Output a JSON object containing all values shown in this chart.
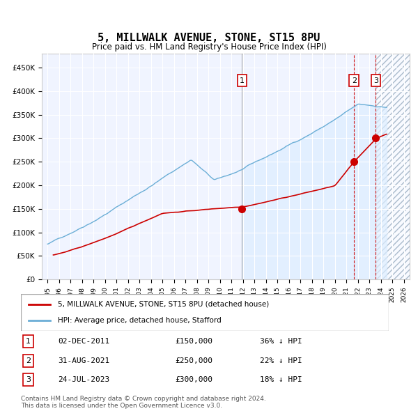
{
  "title": "5, MILLWALK AVENUE, STONE, ST15 8PU",
  "subtitle": "Price paid vs. HM Land Registry's House Price Index (HPI)",
  "legend_property": "5, MILLWALK AVENUE, STONE, ST15 8PU (detached house)",
  "legend_hpi": "HPI: Average price, detached house, Stafford",
  "footer1": "Contains HM Land Registry data © Crown copyright and database right 2024.",
  "footer2": "This data is licensed under the Open Government Licence v3.0.",
  "transactions": [
    {
      "label": "1",
      "date": "02-DEC-2011",
      "price": 150000,
      "pct": "36%",
      "x_year": 2011.92
    },
    {
      "label": "2",
      "date": "31-AUG-2021",
      "price": 250000,
      "pct": "22%",
      "x_year": 2021.67
    },
    {
      "label": "3",
      "date": "24-JUL-2023",
      "price": 300000,
      "pct": "18%",
      "x_year": 2023.56
    }
  ],
  "hpi_color": "#6baed6",
  "property_color": "#cc0000",
  "hpi_fill_color": "#ddeeff",
  "hatch_color": "#bbccdd",
  "vline_color_solid": "#888888",
  "vline_color_dashed": "#cc0000",
  "marker_color": "#cc0000",
  "box_edge_color": "#cc0000",
  "background_color": "#ffffff",
  "plot_bg_color": "#f0f4ff",
  "ylim": [
    0,
    480000
  ],
  "xlim_start": 1994.5,
  "xlim_end": 2026.5,
  "xtick_years": [
    1995,
    1996,
    1997,
    1998,
    1999,
    2000,
    2001,
    2002,
    2003,
    2004,
    2005,
    2006,
    2007,
    2008,
    2009,
    2010,
    2011,
    2012,
    2013,
    2014,
    2015,
    2016,
    2017,
    2018,
    2019,
    2020,
    2021,
    2022,
    2023,
    2024,
    2025,
    2026
  ]
}
